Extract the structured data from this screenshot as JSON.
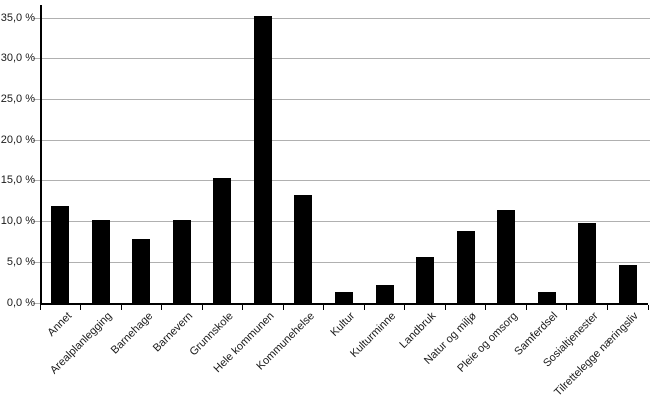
{
  "chart_data": {
    "type": "bar",
    "title": "",
    "xlabel": "",
    "ylabel": "",
    "categories": [
      "Annet",
      "Arealplanlegging",
      "Barnehage",
      "Barnevern",
      "Grunnskole",
      "Hele kommunen",
      "Kommunehelse",
      "Kultur",
      "Kulturminne",
      "Landbruk",
      "Natur og miljø",
      "Pleie og omsorg",
      "Samferdsel",
      "Sosialtjenester",
      "Tilrettelegge næringsliv"
    ],
    "values": [
      11.9,
      10.2,
      7.9,
      10.2,
      15.3,
      35.2,
      13.3,
      1.4,
      2.2,
      5.6,
      8.9,
      11.4,
      1.4,
      9.8,
      4.7
    ],
    "ylim": [
      0,
      35
    ],
    "ytick_step": 5,
    "ytick_labels": [
      "0,0 %",
      "5,0 %",
      "10,0 %",
      "15,0 %",
      "20,0 %",
      "25,0 %",
      "30,0 %",
      "35,0 %"
    ],
    "grid": true,
    "legend": "none",
    "bar_color": "#000000",
    "gridline_color": "#b0b0b0",
    "axis_color": "#000000",
    "background": "#ffffff"
  }
}
